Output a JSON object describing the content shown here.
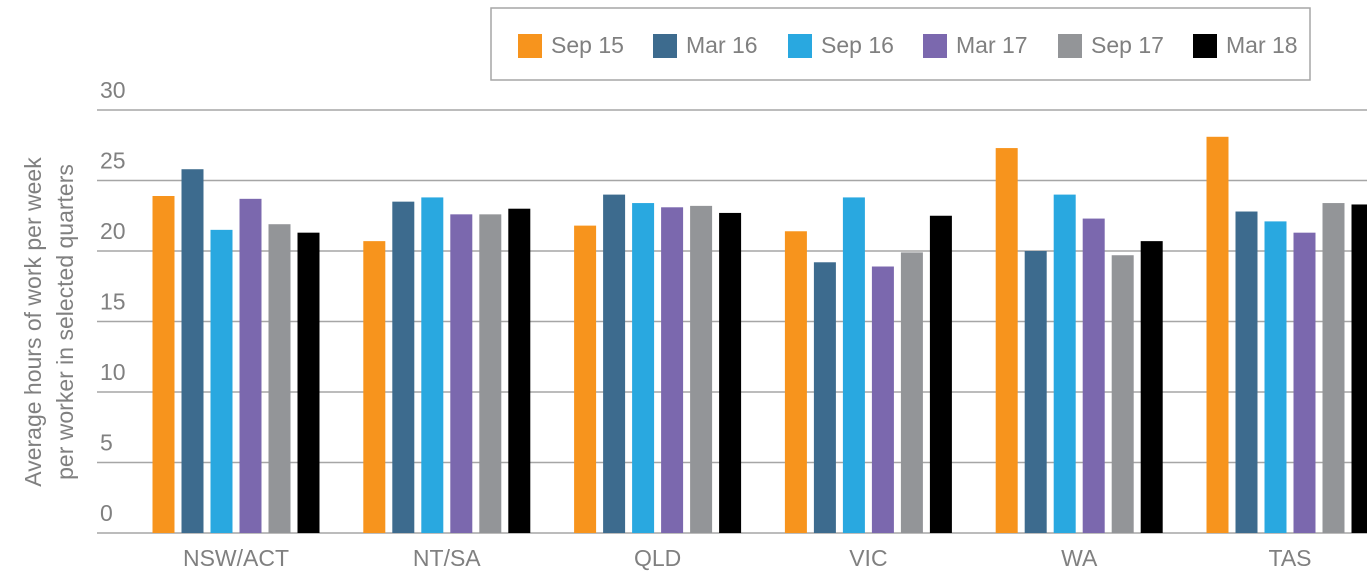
{
  "chart_data": {
    "type": "bar",
    "y_label": [
      "Average hours of work per week",
      "per worker in selected quarters"
    ],
    "categories": [
      "NSW/ACT",
      "NT/SA",
      "QLD",
      "VIC",
      "WA",
      "TAS"
    ],
    "series": [
      {
        "name": "Sep 15",
        "color": "#f7941d",
        "values": [
          23.9,
          20.7,
          21.8,
          21.4,
          27.3,
          28.1
        ]
      },
      {
        "name": "Mar 16",
        "color": "#3d6b8e",
        "values": [
          25.8,
          23.5,
          24.0,
          19.2,
          20.0,
          22.8
        ]
      },
      {
        "name": "Sep 16",
        "color": "#29a8e0",
        "values": [
          21.5,
          23.8,
          23.4,
          23.8,
          24.0,
          22.1
        ]
      },
      {
        "name": "Mar 17",
        "color": "#7b68ae",
        "values": [
          23.7,
          22.6,
          23.1,
          18.9,
          22.3,
          21.3
        ]
      },
      {
        "name": "Sep 17",
        "color": "#939598",
        "values": [
          21.9,
          22.6,
          23.2,
          19.9,
          19.7,
          23.4
        ]
      },
      {
        "name": "Mar 18",
        "color": "#000000",
        "values": [
          21.3,
          23.0,
          22.7,
          22.5,
          20.7,
          23.3
        ]
      }
    ],
    "ylim": [
      0,
      30
    ],
    "yticks": [
      0,
      5,
      10,
      15,
      20,
      25,
      30
    ],
    "grid": true,
    "legend": "top-right"
  }
}
